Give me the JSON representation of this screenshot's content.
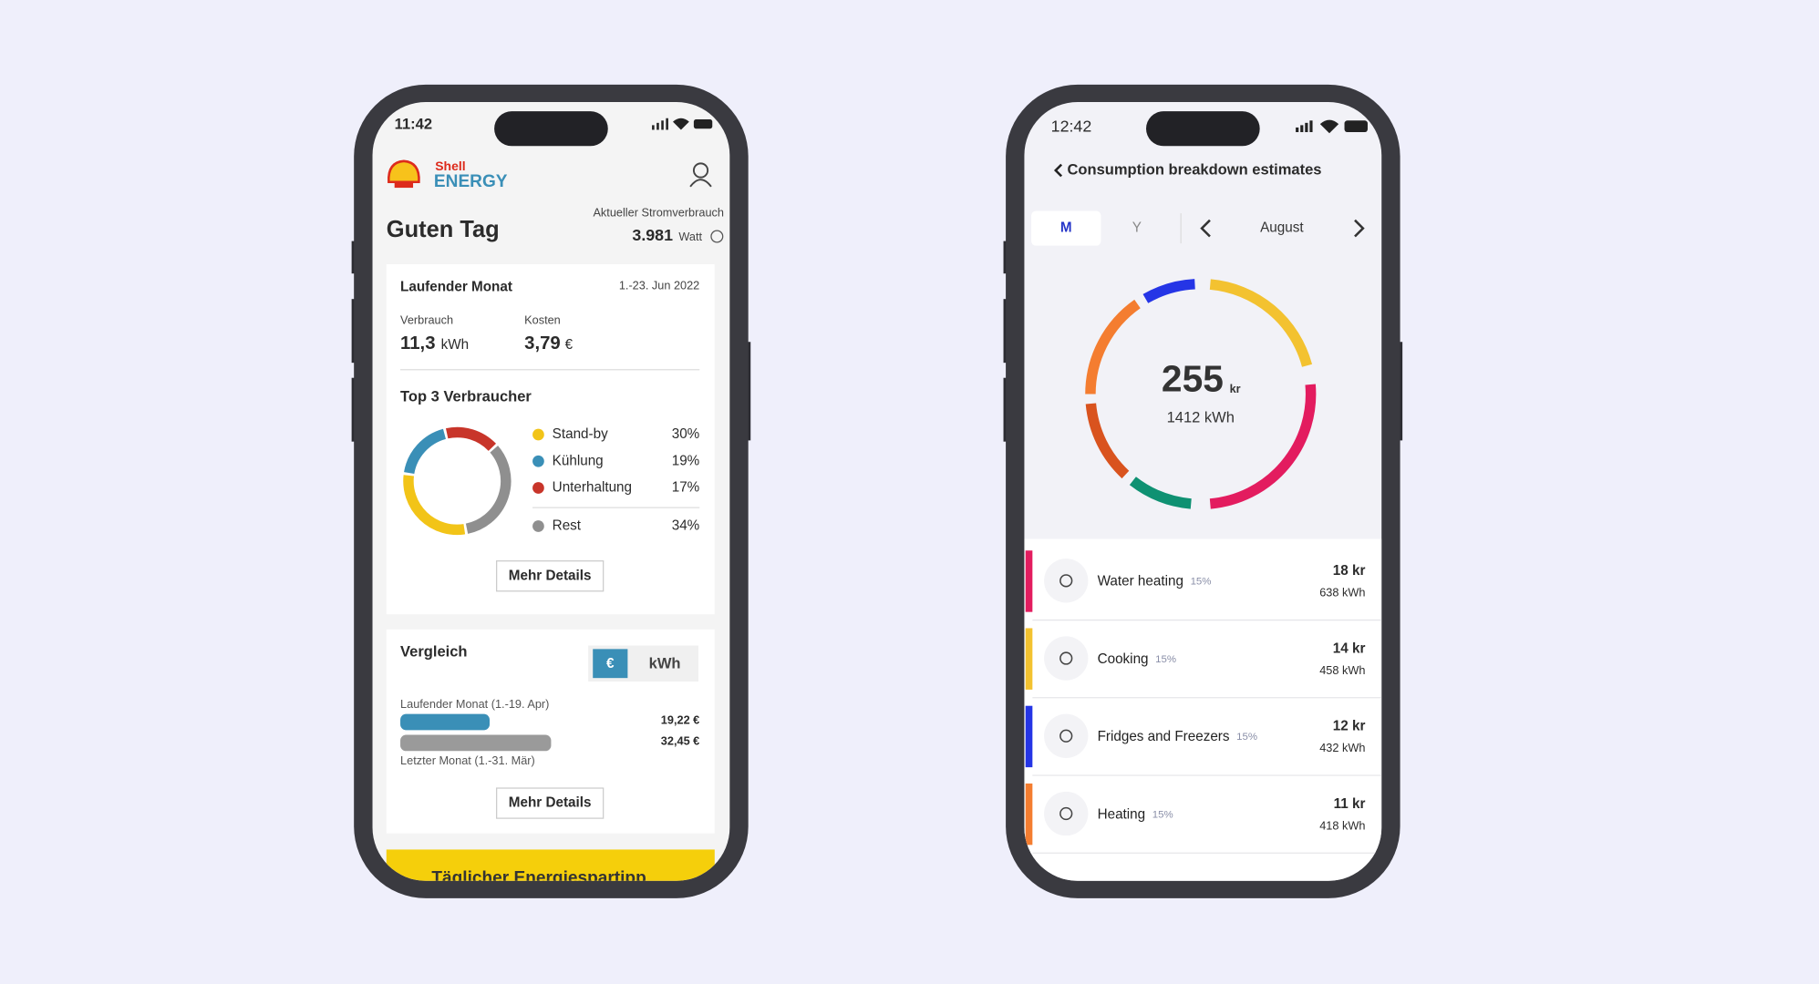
{
  "phone_left": {
    "status_time": "11:42",
    "brand_top": "Shell",
    "brand_bottom": "ENERGY",
    "greeting": "Guten Tag",
    "current_label": "Aktueller Stromverbrauch",
    "current_value": "3.981",
    "current_unit": "Watt",
    "month_card": {
      "title": "Laufender Monat",
      "date": "1.-23. Jun 2022",
      "usage_label": "Verbrauch",
      "usage_value": "11,3",
      "usage_unit": "kWh",
      "cost_label": "Kosten",
      "cost_value": "3,79",
      "cost_unit": "€"
    },
    "top3": {
      "title": "Top 3 Verbraucher",
      "items": [
        {
          "name": "Stand-by",
          "value": 30,
          "value_label": "30%",
          "color": "#f2c418"
        },
        {
          "name": "Kühlung",
          "value": 19,
          "value_label": "19%",
          "color": "#3a8fb7"
        },
        {
          "name": "Unterhaltung",
          "value": 17,
          "value_label": "17%",
          "color": "#c8352a"
        },
        {
          "name": "Rest",
          "value": 34,
          "value_label": "34%",
          "color": "#8f8f8f"
        }
      ],
      "button": "Mehr Details"
    },
    "comparison": {
      "title": "Vergleich",
      "toggle": [
        "€",
        "kWh"
      ],
      "bars": [
        {
          "label": "Laufender Monat (1.-19. Apr)",
          "value": 19.22,
          "value_label": "19,22 €",
          "color": "#3a8fb7"
        },
        {
          "label": "Letzter Monat (1.-31. Mär)",
          "value": 32.45,
          "value_label": "32,45 €",
          "color": "#9a9a9a"
        }
      ],
      "button": "Mehr Details"
    },
    "banner": "Täglicher Energiespartipp"
  },
  "phone_right": {
    "status_time": "12:42",
    "title": "Consumption breakdown estimates",
    "tabs": [
      "M",
      "Y"
    ],
    "period": "August",
    "total_value": "255",
    "total_unit": "kr",
    "total_energy": "1412 kWh",
    "items": [
      {
        "name": "Water heating",
        "share": "15%",
        "cost": "18 kr",
        "energy": "638 kWh",
        "color": "#e31c5f"
      },
      {
        "name": "Cooking",
        "share": "15%",
        "cost": "14 kr",
        "energy": "458 kWh",
        "color": "#f3c230"
      },
      {
        "name": "Fridges and Freezers",
        "share": "15%",
        "cost": "12 kr",
        "energy": "432 kWh",
        "color": "#2535e6"
      },
      {
        "name": "Heating",
        "share": "15%",
        "cost": "11 kr",
        "energy": "418 kWh",
        "color": "#f47d30"
      }
    ]
  }
}
